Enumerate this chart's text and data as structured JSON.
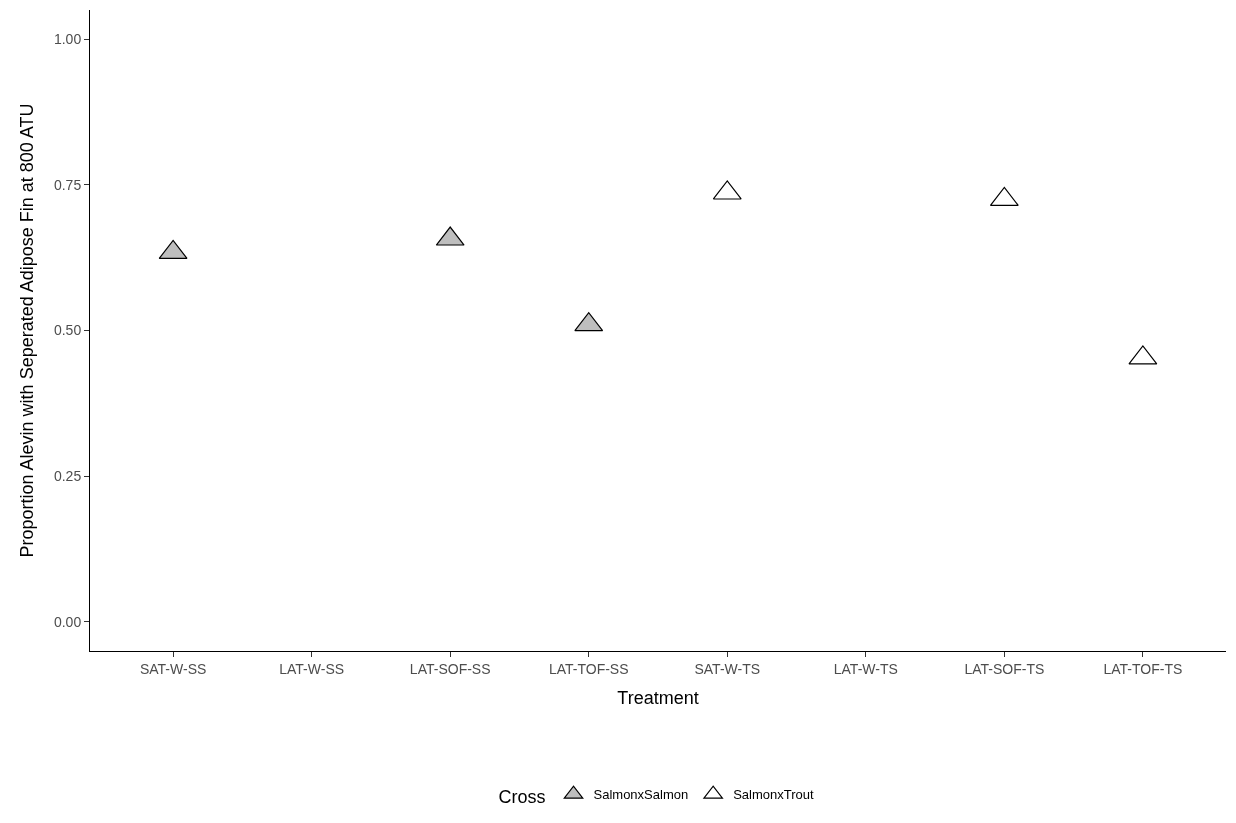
{
  "chart_data": {
    "type": "scatter",
    "xlabel": "Treatment",
    "ylabel": "Proportion Alevin with Seperated Adipose Fin at 800 ATU",
    "legend_title": "Cross",
    "categories": [
      "SAT-W-SS",
      "LAT-W-SS",
      "LAT-SOF-SS",
      "LAT-TOF-SS",
      "SAT-W-TS",
      "LAT-W-TS",
      "LAT-SOF-TS",
      "LAT-TOF-TS"
    ],
    "series": [
      {
        "name": "SalmonxSalmon",
        "color": "#bebebe",
        "values": [
          0.634,
          null,
          0.657,
          0.51,
          null,
          null,
          null,
          null
        ]
      },
      {
        "name": "SalmonxTrout",
        "color": "#ffffff",
        "values": [
          null,
          null,
          null,
          null,
          0.736,
          null,
          0.725,
          0.453
        ]
      }
    ],
    "ylim": [
      -0.05,
      1.05
    ],
    "yticks": [
      {
        "value": 0,
        "label": "0.00"
      },
      {
        "value": 0.25,
        "label": "0.25"
      },
      {
        "value": 0.5,
        "label": "0.50"
      },
      {
        "value": 0.75,
        "label": "0.75"
      },
      {
        "value": 1,
        "label": "1.00"
      }
    ],
    "legend": "bottom",
    "marker": "triangle"
  }
}
